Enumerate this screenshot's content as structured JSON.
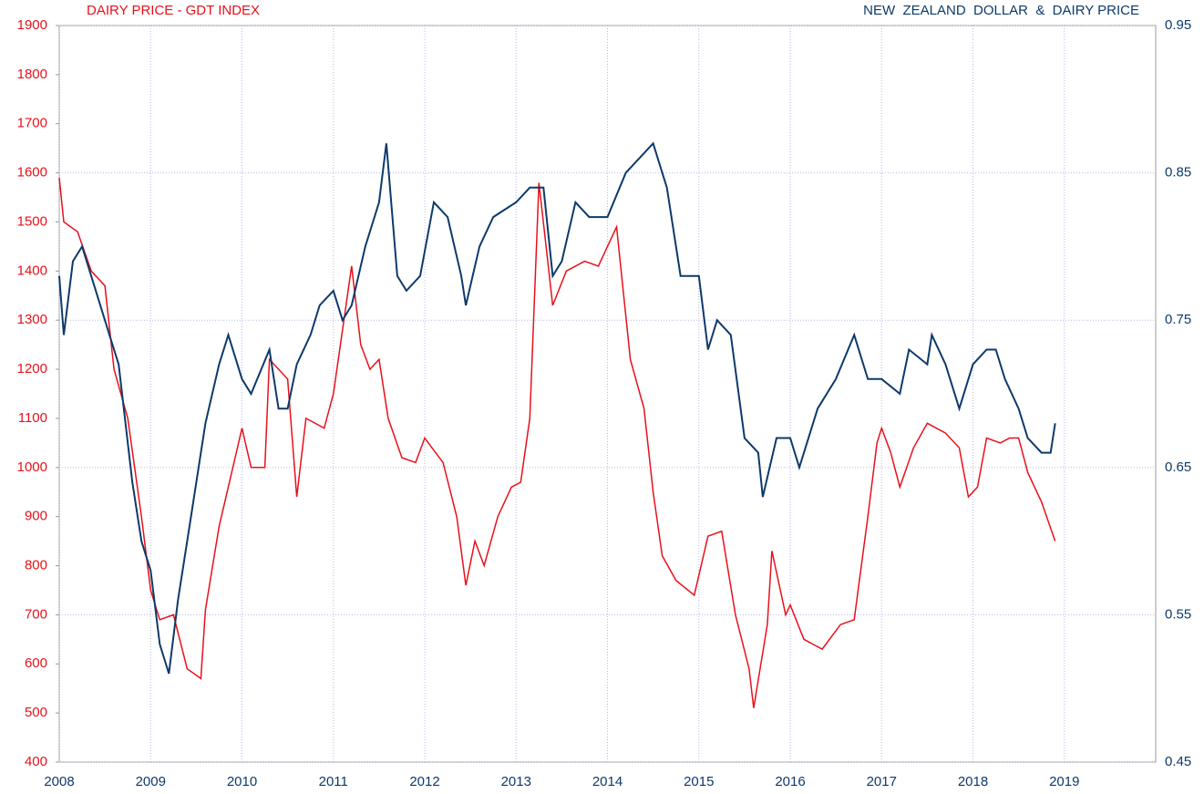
{
  "chart_data": {
    "type": "line",
    "title_left": "DAIRY PRICE - GDT INDEX",
    "title_right": "NEW  ZEALAND  DOLLAR  &  DAIRY PRICE",
    "xlim": [
      2008,
      2020
    ],
    "xticks": [
      2008,
      2009,
      2010,
      2011,
      2012,
      2013,
      2014,
      2015,
      2016,
      2017,
      2018,
      2019
    ],
    "ylim": [
      400,
      1900
    ],
    "yticks": [
      400,
      500,
      600,
      700,
      800,
      900,
      1000,
      1100,
      1200,
      1300,
      1400,
      1500,
      1600,
      1700,
      1800,
      1900
    ],
    "y2lim": [
      0.45,
      0.95
    ],
    "y2ticks": [
      0.45,
      0.55,
      0.65,
      0.75,
      0.85,
      0.95
    ],
    "grid": true,
    "series": [
      {
        "color": "#e8101a",
        "axis": "y",
        "x": [
          2008.0,
          2008.05,
          2008.2,
          2008.35,
          2008.5,
          2008.6,
          2008.75,
          2008.9,
          2009.0,
          2009.1,
          2009.25,
          2009.4,
          2009.55,
          2009.6,
          2009.75,
          2009.9,
          2010.0,
          2010.1,
          2010.25,
          2010.3,
          2010.5,
          2010.6,
          2010.7,
          2010.9,
          2011.0,
          2011.2,
          2011.3,
          2011.4,
          2011.5,
          2011.6,
          2011.75,
          2011.9,
          2012.0,
          2012.2,
          2012.35,
          2012.45,
          2012.55,
          2012.65,
          2012.8,
          2012.95,
          2013.05,
          2013.15,
          2013.25,
          2013.4,
          2013.55,
          2013.75,
          2013.9,
          2014.1,
          2014.25,
          2014.4,
          2014.5,
          2014.6,
          2014.75,
          2014.95,
          2015.1,
          2015.25,
          2015.4,
          2015.55,
          2015.6,
          2015.75,
          2015.8,
          2015.95,
          2016.0,
          2016.15,
          2016.35,
          2016.55,
          2016.7,
          2016.85,
          2016.95,
          2017.0,
          2017.1,
          2017.2,
          2017.35,
          2017.5,
          2017.7,
          2017.85,
          2017.95,
          2018.05,
          2018.15,
          2018.3,
          2018.4,
          2018.5,
          2018.6,
          2018.75,
          2018.9
        ],
        "values": [
          1590,
          1500,
          1480,
          1400,
          1370,
          1200,
          1100,
          900,
          750,
          690,
          700,
          590,
          570,
          710,
          880,
          1000,
          1080,
          1000,
          1000,
          1220,
          1180,
          940,
          1100,
          1080,
          1150,
          1410,
          1250,
          1200,
          1220,
          1100,
          1020,
          1010,
          1060,
          1010,
          900,
          760,
          850,
          800,
          900,
          960,
          970,
          1100,
          1580,
          1330,
          1400,
          1420,
          1410,
          1490,
          1220,
          1120,
          950,
          820,
          770,
          740,
          860,
          870,
          700,
          590,
          510,
          680,
          830,
          700,
          720,
          650,
          630,
          680,
          690,
          900,
          1050,
          1080,
          1030,
          960,
          1040,
          1090,
          1070,
          1040,
          940,
          960,
          1060,
          1050,
          1060,
          1060,
          990,
          930,
          850
        ]
      },
      {
        "color": "#0d3a6b",
        "axis": "y2",
        "x": [
          2008.0,
          2008.05,
          2008.15,
          2008.25,
          2008.4,
          2008.55,
          2008.65,
          2008.8,
          2008.9,
          2009.0,
          2009.1,
          2009.2,
          2009.3,
          2009.45,
          2009.6,
          2009.75,
          2009.85,
          2010.0,
          2010.1,
          2010.3,
          2010.4,
          2010.5,
          2010.6,
          2010.75,
          2010.85,
          2011.0,
          2011.1,
          2011.2,
          2011.35,
          2011.5,
          2011.58,
          2011.7,
          2011.8,
          2011.95,
          2012.1,
          2012.25,
          2012.4,
          2012.45,
          2012.6,
          2012.75,
          2013.0,
          2013.15,
          2013.3,
          2013.4,
          2013.5,
          2013.65,
          2013.8,
          2014.0,
          2014.2,
          2014.35,
          2014.5,
          2014.65,
          2014.8,
          2015.0,
          2015.1,
          2015.2,
          2015.35,
          2015.5,
          2015.65,
          2015.7,
          2015.85,
          2016.0,
          2016.1,
          2016.3,
          2016.5,
          2016.7,
          2016.85,
          2017.0,
          2017.2,
          2017.3,
          2017.5,
          2017.55,
          2017.7,
          2017.85,
          2018.0,
          2018.15,
          2018.25,
          2018.35,
          2018.5,
          2018.6,
          2018.75,
          2018.85,
          2018.9
        ],
        "values": [
          0.78,
          0.74,
          0.79,
          0.8,
          0.77,
          0.74,
          0.72,
          0.64,
          0.6,
          0.58,
          0.53,
          0.51,
          0.56,
          0.62,
          0.68,
          0.72,
          0.74,
          0.71,
          0.7,
          0.73,
          0.69,
          0.69,
          0.72,
          0.74,
          0.76,
          0.77,
          0.75,
          0.76,
          0.8,
          0.83,
          0.87,
          0.78,
          0.77,
          0.78,
          0.83,
          0.82,
          0.78,
          0.76,
          0.8,
          0.82,
          0.83,
          0.84,
          0.84,
          0.78,
          0.79,
          0.83,
          0.82,
          0.82,
          0.85,
          0.86,
          0.87,
          0.84,
          0.78,
          0.78,
          0.73,
          0.75,
          0.74,
          0.67,
          0.66,
          0.63,
          0.67,
          0.67,
          0.65,
          0.69,
          0.71,
          0.74,
          0.71,
          0.71,
          0.7,
          0.73,
          0.72,
          0.74,
          0.72,
          0.69,
          0.72,
          0.73,
          0.73,
          0.71,
          0.69,
          0.67,
          0.66,
          0.66,
          0.68
        ]
      }
    ]
  }
}
